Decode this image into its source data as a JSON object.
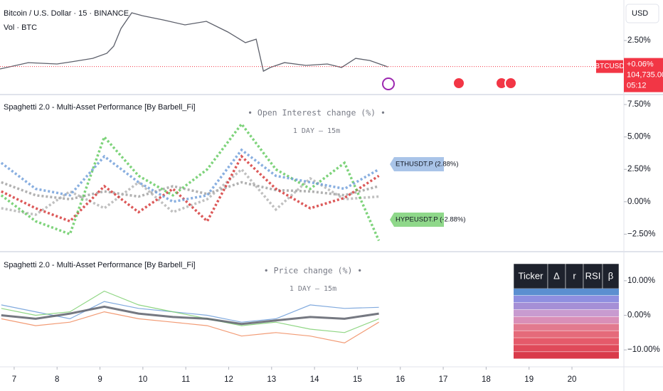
{
  "header": {
    "symbol": "Bitcoin / U.S. Dollar · 15 · BINANCE",
    "volume": "Vol · BTC",
    "currency": "USD"
  },
  "time_axis": {
    "xlim": [
      6.67,
      21.21
    ],
    "xticks": [
      7,
      8,
      9,
      10,
      11,
      12,
      13,
      14,
      15,
      16,
      17,
      18,
      19,
      20
    ]
  },
  "price_pane": {
    "ylim": [
      -2.5,
      6.3
    ],
    "yticks": [
      {
        "value": 2.5,
        "label": "2.50%"
      }
    ],
    "color": "#5d606b",
    "x": [
      6.67,
      7.33,
      8.0,
      8.33,
      8.83,
      9.16,
      9.32,
      9.49,
      9.74,
      9.99,
      10.48,
      10.98,
      11.48,
      11.98,
      12.39,
      12.64,
      12.81,
      12.97,
      13.3,
      13.8,
      14.3,
      14.63,
      14.96,
      15.29,
      15.71
    ],
    "values": [
      -0.17,
      0.43,
      0.3,
      0.5,
      0.83,
      1.3,
      1.97,
      3.63,
      5.1,
      4.83,
      4.43,
      3.97,
      4.3,
      3.3,
      2.3,
      2.63,
      -0.37,
      -0.03,
      0.43,
      0.17,
      0.3,
      -0.03,
      0.83,
      0.63,
      0.03
    ],
    "last": {
      "value": 0.06,
      "label": "+0.06%",
      "ticker": "BTCUSD",
      "price": "104,735.00",
      "countdown": "05:12",
      "color": "#f23645"
    }
  },
  "oi_pane": {
    "title": "Spaghetti 2.0 - Multi-Asset Performance [By Barbell_Fi]",
    "subtitle": "• Open Interest change (%) •",
    "note": "1 DAY – 15m",
    "ylim": [
      -3.74,
      8.16
    ],
    "yticks": [
      {
        "value": 7.5,
        "label": "7.50%"
      },
      {
        "value": 5,
        "label": "5.00%"
      },
      {
        "value": 2.5,
        "label": "2.50%"
      },
      {
        "value": 0,
        "label": "0.00%"
      },
      {
        "value": -2.5,
        "label": "−2.50%"
      }
    ],
    "x": [
      6.7,
      7.5,
      8.3,
      9.1,
      9.9,
      10.7,
      11.5,
      12.3,
      13.1,
      13.9,
      14.7,
      15.5
    ],
    "series": [
      {
        "color": "#9e9e9e",
        "values": [
          1.5,
          0.5,
          0.2,
          0.8,
          0.4,
          1.2,
          0.6,
          1.5,
          0.9,
          0.8,
          0.5,
          1.2
        ]
      },
      {
        "color": "#b0b0b0",
        "values": [
          -0.5,
          -1.0,
          0.8,
          -0.5,
          1.5,
          -0.8,
          0.2,
          2.5,
          -0.6,
          1.8,
          0.2,
          0.4
        ]
      },
      {
        "color": "#d32f2f",
        "values": [
          0.8,
          -0.5,
          -1.5,
          1.2,
          -0.8,
          1.0,
          -1.5,
          3.5,
          1.0,
          -0.5,
          0.3,
          2.0
        ]
      },
      {
        "color": "#5ec85a",
        "values": [
          0.5,
          -1.5,
          -2.5,
          5.0,
          2.0,
          0.5,
          2.5,
          6.0,
          2.5,
          1.0,
          3.0,
          -3.0
        ]
      },
      {
        "color": "#6b9bd8",
        "values": [
          3.0,
          1.0,
          0.5,
          3.5,
          1.5,
          0.0,
          0.5,
          4.0,
          2.0,
          1.5,
          1.0,
          2.5
        ]
      }
    ],
    "labels": [
      {
        "text": "ETHUSDT.P (2.88%)",
        "color": "#a9c4e8"
      },
      {
        "text": "HYPEUSDT.P (-2.88%)",
        "color": "#8fd88a"
      }
    ]
  },
  "price_change_pane": {
    "title": "Spaghetti 2.0 - Multi-Asset Performance [By Barbell_Fi]",
    "subtitle": "• Price change (%) •",
    "note": "1 DAY – 15m",
    "ylim": [
      -14.7,
      18.2
    ],
    "yticks": [
      {
        "value": 10,
        "label": "10.00%"
      },
      {
        "value": 0,
        "label": "0.00%"
      },
      {
        "value": -10,
        "label": "−10.00%"
      }
    ],
    "x": [
      6.7,
      7.5,
      8.3,
      9.1,
      9.9,
      10.7,
      11.5,
      12.3,
      13.1,
      13.9,
      14.7,
      15.5
    ],
    "series": [
      {
        "color": "#6b9bd8",
        "values": [
          3,
          1,
          -1,
          4,
          2,
          1,
          0,
          -2,
          -1,
          3,
          2,
          2.3
        ]
      },
      {
        "color": "#f08a5d",
        "values": [
          -1,
          -3,
          -2,
          1,
          -1,
          -2,
          -3,
          -6,
          -5,
          -6,
          -8,
          -2
        ]
      },
      {
        "color": "#7ccf6f",
        "values": [
          2,
          0,
          1,
          7,
          3,
          1,
          -1,
          -3,
          -2,
          -4,
          -5,
          -1
        ]
      },
      {
        "color": "#5d606b",
        "values": [
          0,
          -1,
          0.5,
          2.5,
          0.5,
          -0.5,
          -1,
          -2.5,
          -1.5,
          -0.5,
          -1,
          0.5
        ]
      }
    ]
  },
  "table": {
    "headers": [
      "Ticker",
      "Δ",
      "r",
      "RSI",
      "β"
    ],
    "row_colors": [
      "#5b8fd0",
      "#8f8fe0",
      "#a58fd6",
      "#c89bd0",
      "#d98fb8",
      "#e27a8f",
      "#e56a7a",
      "#e55a6a",
      "#e04a5a",
      "#d93a4a"
    ]
  }
}
